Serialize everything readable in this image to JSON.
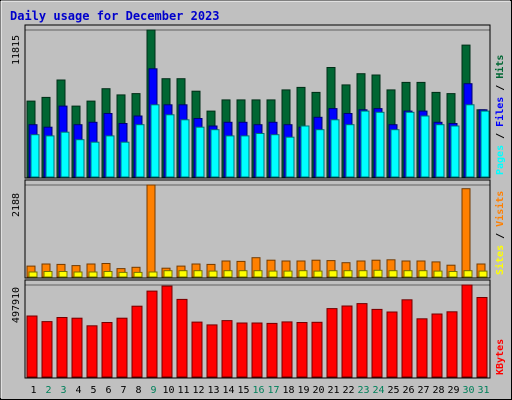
{
  "chart_data": {
    "type": "bar",
    "title": "Daily usage for December 2023",
    "categories": [
      "1",
      "2",
      "3",
      "4",
      "5",
      "6",
      "7",
      "8",
      "9",
      "10",
      "11",
      "12",
      "13",
      "14",
      "15",
      "16",
      "17",
      "18",
      "19",
      "20",
      "21",
      "22",
      "23",
      "24",
      "25",
      "26",
      "27",
      "28",
      "29",
      "30",
      "31"
    ],
    "weekend_days": [
      "2",
      "3",
      "9",
      "16",
      "17",
      "23",
      "24",
      "30",
      "31"
    ],
    "panels": [
      {
        "id": "top",
        "max_label": "11815",
        "ylim": [
          0,
          11815
        ],
        "legend": [
          "Pages",
          "Files",
          "Hits"
        ],
        "series": [
          {
            "name": "Hits",
            "color": "#006633",
            "values": [
              6100,
              6400,
              7800,
              5700,
              6100,
              7100,
              6600,
              6700,
              11815,
              7900,
              7900,
              6900,
              5300,
              6200,
              6200,
              6200,
              6200,
              7000,
              7200,
              6800,
              8800,
              7400,
              8300,
              8200,
              7000,
              7600,
              7600,
              6800,
              6700,
              10600,
              5400
            ]
          },
          {
            "name": "Files",
            "color": "#0000ff",
            "values": [
              4200,
              4000,
              5700,
              4200,
              4400,
              5100,
              4300,
              4900,
              8700,
              5800,
              5800,
              4700,
              4100,
              4400,
              4400,
              4200,
              4400,
              4200,
              4000,
              4800,
              5500,
              5100,
              5400,
              5500,
              4200,
              5300,
              5300,
              4400,
              4300,
              7500,
              5400
            ]
          },
          {
            "name": "Pages",
            "color": "#00ffff",
            "values": [
              3400,
              3300,
              3600,
              3000,
              2800,
              3300,
              2800,
              4200,
              5800,
              5000,
              4600,
              4000,
              3800,
              3300,
              3300,
              3500,
              3400,
              3200,
              4100,
              3800,
              4600,
              4200,
              5300,
              5200,
              3800,
              5200,
              4900,
              4200,
              4100,
              5800,
              5300
            ]
          }
        ]
      },
      {
        "id": "middle",
        "max_label": "2188",
        "ylim": [
          0,
          2188
        ],
        "legend": [
          "Sites",
          "Visits"
        ],
        "series": [
          {
            "name": "Visits",
            "color": "#ff8000",
            "values": [
              260,
              310,
              300,
              270,
              310,
              320,
              200,
              230,
              2188,
              210,
              260,
              310,
              300,
              380,
              370,
              460,
              400,
              380,
              380,
              400,
              390,
              340,
              380,
              400,
              410,
              380,
              380,
              360,
              280,
              2100,
              310
            ]
          },
          {
            "name": "Sites",
            "color": "#ffff00",
            "values": [
              120,
              130,
              130,
              120,
              120,
              130,
              110,
              110,
              120,
              150,
              150,
              150,
              140,
              150,
              150,
              150,
              140,
              140,
              150,
              140,
              150,
              150,
              150,
              160,
              150,
              150,
              150,
              140,
              130,
              150,
              140
            ]
          }
        ]
      },
      {
        "id": "bottom",
        "max_label": "497910",
        "ylim": [
          0,
          497910
        ],
        "legend": [
          "KBytes"
        ],
        "series": [
          {
            "name": "KBytes",
            "color": "#ff0000",
            "values": [
              330000,
              300000,
              322000,
              318000,
              277000,
              295000,
              318000,
              383000,
              465000,
              492000,
              420000,
              297000,
              282000,
              305000,
              292000,
              292000,
              290000,
              298000,
              295000,
              296000,
              370000,
              384000,
              397000,
              366000,
              352000,
              418000,
              315000,
              341000,
              353000,
              497910,
              430000
            ]
          }
        ]
      }
    ]
  }
}
